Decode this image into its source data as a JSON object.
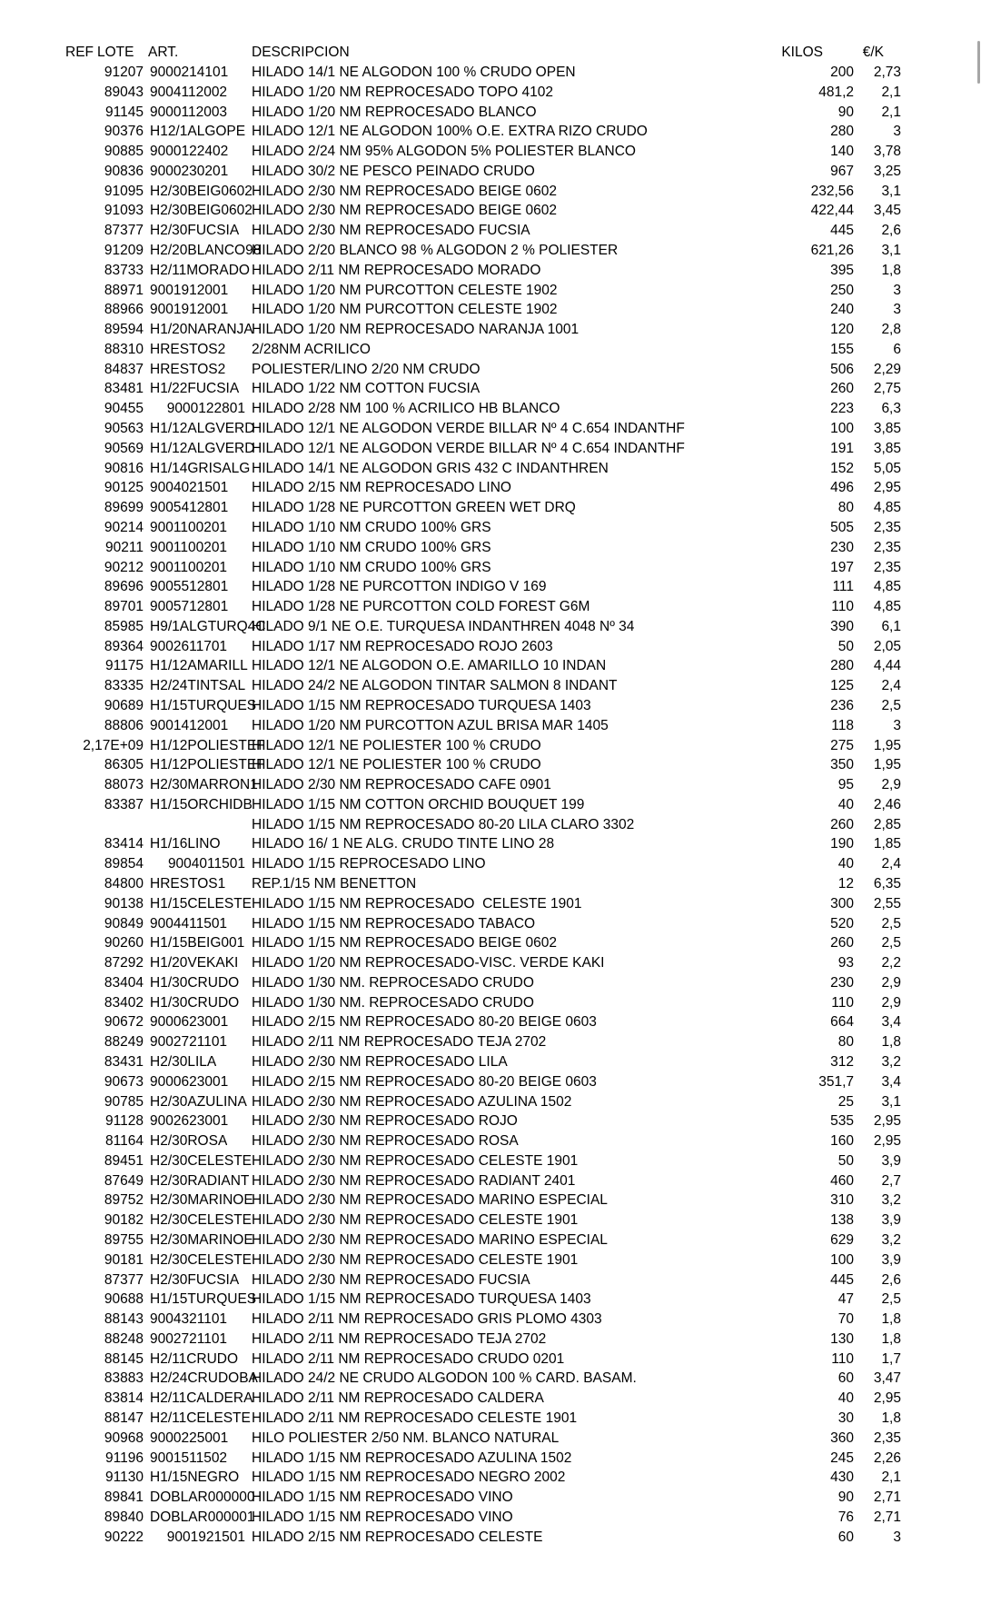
{
  "table": {
    "headers": {
      "ref": "REF",
      "lote": "LOTE",
      "art": "ART.",
      "descripcion": "DESCRIPCION",
      "kilos": "KILOS",
      "euro_per_k": "€/K"
    },
    "rows": [
      [
        "91207",
        "9000214101",
        "",
        "HILADO 14/1 NE ALGODON 100 % CRUDO OPEN",
        "200",
        "2,73"
      ],
      [
        "89043",
        "9004112002",
        "",
        "HILADO 1/20 NM REPROCESADO TOPO 4102",
        "481,2",
        "2,1"
      ],
      [
        "91145",
        "9000112003",
        "",
        "HILADO 1/20 NM REPROCESADO BLANCO",
        "90",
        "2,1"
      ],
      [
        "90376",
        "H12/1ALGOPE",
        "",
        "HILADO 12/1 NE ALGODON 100% O.E. EXTRA RIZO CRUDO",
        "280",
        "3"
      ],
      [
        "90885",
        "9000122402",
        "",
        "HILADO 2/24 NM 95% ALGODON 5% POLIESTER BLANCO",
        "140",
        "3,78"
      ],
      [
        "90836",
        "9000230201",
        "",
        "HILADO 30/2 NE PESCO PEINADO CRUDO",
        "967",
        "3,25"
      ],
      [
        "91095",
        "H2/30BEIG0602",
        "",
        "HILADO 2/30 NM REPROCESADO BEIGE 0602",
        "232,56",
        "3,1"
      ],
      [
        "91093",
        "H2/30BEIG0602",
        "",
        "HILADO 2/30 NM REPROCESADO BEIGE 0602",
        "422,44",
        "3,45"
      ],
      [
        "87377",
        "H2/30FUCSIA",
        "",
        "HILADO 2/30 NM REPROCESADO FUCSIA",
        "445",
        "2,6"
      ],
      [
        "91209",
        "H2/20BLANCO98",
        "",
        "HILADO 2/20 BLANCO 98 % ALGODON 2 % POLIESTER",
        "621,26",
        "3,1"
      ],
      [
        "83733",
        "H2/11MORADO",
        "",
        "HILADO 2/11 NM REPROCESADO MORADO",
        "395",
        "1,8"
      ],
      [
        "88971",
        "9001912001",
        "",
        "HILADO 1/20 NM PURCOTTON CELESTE 1902",
        "250",
        "3"
      ],
      [
        "88966",
        "9001912001",
        "",
        "HILADO 1/20 NM PURCOTTON CELESTE 1902",
        "240",
        "3"
      ],
      [
        "89594",
        "H1/20NARANJA",
        "",
        "HILADO 1/20 NM REPROCESADO NARANJA 1001",
        "120",
        "2,8"
      ],
      [
        "88310",
        "HRESTOS2",
        "",
        "2/28NM ACRILICO",
        "155",
        "6"
      ],
      [
        "84837",
        "HRESTOS2",
        "",
        "POLIESTER/LINO 2/20 NM CRUDO",
        "506",
        "2,29"
      ],
      [
        "83481",
        "H1/22FUCSIA",
        "",
        "HILADO 1/22 NM COTTON FUCSIA",
        "260",
        "2,75"
      ],
      [
        "90455",
        "",
        "9000122801",
        "HILADO 2/28 NM 100 % ACRILICO HB BLANCO",
        "223",
        "6,3"
      ],
      [
        "90563",
        "H1/12ALGVERD",
        "",
        "HILADO 12/1 NE ALGODON VERDE BILLAR Nº 4 C.654 INDANTHF",
        "100",
        "3,85"
      ],
      [
        "90569",
        "H1/12ALGVERD",
        "",
        "HILADO 12/1 NE ALGODON VERDE BILLAR Nº 4 C.654 INDANTHF",
        "191",
        "3,85"
      ],
      [
        "90816",
        "H1/14GRISALG",
        "",
        "HILADO 14/1 NE ALGODON GRIS 432 C INDANTHREN",
        "152",
        "5,05"
      ],
      [
        "90125",
        "9004021501",
        "",
        "HILADO 2/15 NM REPROCESADO LINO",
        "496",
        "2,95"
      ],
      [
        "89699",
        "9005412801",
        "",
        "HILADO 1/28 NE PURCOTTON GREEN WET DRQ",
        "80",
        "4,85"
      ],
      [
        "90214",
        "9001100201",
        "",
        "HILADO 1/10 NM CRUDO 100% GRS",
        "505",
        "2,35"
      ],
      [
        "90211",
        "9001100201",
        "",
        "HILADO 1/10 NM CRUDO 100% GRS",
        "230",
        "2,35"
      ],
      [
        "90212",
        "9001100201",
        "",
        "HILADO 1/10 NM CRUDO 100% GRS",
        "197",
        "2,35"
      ],
      [
        "89696",
        "9005512801",
        "",
        "HILADO 1/28 NE PURCOTTON INDIGO V 169",
        "111",
        "4,85"
      ],
      [
        "89701",
        "9005712801",
        "",
        "HILADO 1/28 NE PURCOTTON COLD FOREST G6M",
        "110",
        "4,85"
      ],
      [
        "85985",
        "H9/1ALGTURQ4C",
        "",
        "HILADO 9/1 NE O.E. TURQUESA INDANTHREN 4048 Nº 34",
        "390",
        "6,1"
      ],
      [
        "89364",
        "9002611701",
        "",
        "HILADO 1/17 NM REPROCESADO ROJO 2603",
        "50",
        "2,05"
      ],
      [
        "91175",
        "H1/12AMARILL",
        "",
        "HILADO 12/1 NE ALGODON O.E. AMARILLO 10 INDAN",
        "280",
        "4,44"
      ],
      [
        "83335",
        "H2/24TINTSAL",
        "",
        "HILADO 24/2 NE ALGODON TINTAR SALMON 8 INDANT",
        "125",
        "2,4"
      ],
      [
        "90689",
        "H1/15TURQUES",
        "",
        "HILADO 1/15 NM REPROCESADO TURQUESA 1403",
        "236",
        "2,5"
      ],
      [
        "88806",
        "9001412001",
        "",
        "HILADO 1/20 NM PURCOTTON AZUL BRISA MAR 1405",
        "118",
        "3"
      ],
      [
        "2,17E+09",
        "H1/12POLIESTEF",
        "",
        "HILADO 12/1 NE POLIESTER 100 % CRUDO",
        "275",
        "1,95"
      ],
      [
        "86305",
        "H1/12POLIESTEF",
        "",
        "HILADO 12/1 NE POLIESTER 100 % CRUDO",
        "350",
        "1,95"
      ],
      [
        "88073",
        "H2/30MARRON1",
        "",
        "HILADO 2/30 NM REPROCESADO CAFE 0901",
        "95",
        "2,9"
      ],
      [
        "83387",
        "H1/15ORCHIDB",
        "",
        "HILADO 1/15 NM COTTON ORCHID BOUQUET 199",
        "40",
        "2,46"
      ],
      [
        "",
        "",
        "",
        "HILADO 1/15 NM REPROCESADO 80-20 LILA CLARO 3302",
        "260",
        "2,85"
      ],
      [
        "83414",
        "H1/16LINO",
        "",
        "HILADO 16/ 1 NE ALG. CRUDO TINTE LINO 28",
        "190",
        "1,85"
      ],
      [
        "89854",
        "",
        "9004011501",
        "HILADO 1/15 REPROCESADO LINO",
        "40",
        "2,4"
      ],
      [
        "84800",
        "HRESTOS1",
        "",
        "REP.1/15 NM BENETTON",
        "12",
        "6,35"
      ],
      [
        "90138",
        "H1/15CELESTE",
        "",
        "HILADO 1/15 NM REPROCESADO  CELESTE 1901",
        "300",
        "2,55"
      ],
      [
        "90849",
        "9004411501",
        "",
        "HILADO 1/15 NM REPROCESADO TABACO",
        "520",
        "2,5"
      ],
      [
        "90260",
        "H1/15BEIG001",
        "",
        "HILADO 1/15 NM REPROCESADO BEIGE 0602",
        "260",
        "2,5"
      ],
      [
        "87292",
        "H1/20VEKAKI",
        "",
        "HILADO 1/20 NM REPROCESADO-VISC. VERDE KAKI",
        "93",
        "2,2"
      ],
      [
        "83404",
        "H1/30CRUDO",
        "",
        "HILADO 1/30 NM. REPROCESADO CRUDO",
        "230",
        "2,9"
      ],
      [
        "83402",
        "H1/30CRUDO",
        "",
        "HILADO 1/30 NM. REPROCESADO CRUDO",
        "110",
        "2,9"
      ],
      [
        "90672",
        "9000623001",
        "",
        "HILADO 2/15 NM REPROCESADO 80-20 BEIGE 0603",
        "664",
        "3,4"
      ],
      [
        "88249",
        "9002721101",
        "",
        "HILADO 2/11 NM REPROCESADO TEJA 2702",
        "80",
        "1,8"
      ],
      [
        "83431",
        "H2/30LILA",
        "",
        "HILADO 2/30 NM REPROCESADO LILA",
        "312",
        "3,2"
      ],
      [
        "90673",
        "9000623001",
        "",
        "HILADO 2/15 NM REPROCESADO 80-20 BEIGE 0603",
        "351,7",
        "3,4"
      ],
      [
        "90785",
        "H2/30AZULINA",
        "",
        "HILADO 2/30 NM REPROCESADO AZULINA 1502",
        "25",
        "3,1"
      ],
      [
        "91128",
        "9002623001",
        "",
        "HILADO 2/30 NM REPROCESADO ROJO",
        "535",
        "2,95"
      ],
      [
        "81164",
        "H2/30ROSA",
        "",
        "HILADO 2/30 NM REPROCESADO ROSA",
        "160",
        "2,95"
      ],
      [
        "89451",
        "H2/30CELESTE",
        "",
        "HILADO 2/30 NM REPROCESADO CELESTE 1901",
        "50",
        "3,9"
      ],
      [
        "87649",
        "H2/30RADIANT",
        "",
        "HILADO 2/30 NM REPROCESADO RADIANT 2401",
        "460",
        "2,7"
      ],
      [
        "89752",
        "H2/30MARINOE",
        "",
        "HILADO 2/30 NM REPROCESADO MARINO ESPECIAL",
        "310",
        "3,2"
      ],
      [
        "90182",
        "H2/30CELESTE",
        "",
        "HILADO 2/30 NM REPROCESADO CELESTE 1901",
        "138",
        "3,9"
      ],
      [
        "89755",
        "H2/30MARINOE",
        "",
        "HILADO 2/30 NM REPROCESADO MARINO ESPECIAL",
        "629",
        "3,2"
      ],
      [
        "90181",
        "H2/30CELESTE",
        "",
        "HILADO 2/30 NM REPROCESADO CELESTE 1901",
        "100",
        "3,9"
      ],
      [
        "87377",
        "H2/30FUCSIA",
        "",
        "HILADO 2/30 NM REPROCESADO FUCSIA",
        "445",
        "2,6"
      ],
      [
        "90688",
        "H1/15TURQUES",
        "",
        "HILADO 1/15 NM REPROCESADO TURQUESA 1403",
        "47",
        "2,5"
      ],
      [
        "88143",
        "9004321101",
        "",
        "HILADO 2/11 NM REPROCESADO GRIS PLOMO 4303",
        "70",
        "1,8"
      ],
      [
        "88248",
        "9002721101",
        "",
        "HILADO 2/11 NM REPROCESADO TEJA 2702",
        "130",
        "1,8"
      ],
      [
        "88145",
        "H2/11CRUDO",
        "",
        "HILADO 2/11 NM REPROCESADO CRUDO 0201",
        "110",
        "1,7"
      ],
      [
        "83883",
        "H2/24CRUDOBA",
        "",
        "HILADO 24/2 NE CRUDO ALGODON 100 % CARD. BASAM.",
        "60",
        "3,47"
      ],
      [
        "83814",
        "H2/11CALDERA",
        "",
        "HILADO 2/11 NM REPROCESADO CALDERA",
        "40",
        "2,95"
      ],
      [
        "88147",
        "H2/11CELESTE",
        "",
        "HILADO 2/11 NM REPROCESADO CELESTE 1901",
        "30",
        "1,8"
      ],
      [
        "90968",
        "9000225001",
        "",
        "HILO POLIESTER 2/50 NM. BLANCO NATURAL",
        "360",
        "2,35"
      ],
      [
        "91196",
        "9001511502",
        "",
        "HILADO 1/15 NM REPROCESADO AZULINA 1502",
        "245",
        "2,26"
      ],
      [
        "91130",
        "H1/15NEGRO",
        "",
        "HILADO 1/15 NM REPROCESADO NEGRO 2002",
        "430",
        "2,1"
      ],
      [
        "89841",
        "DOBLAR000000",
        "",
        "HILADO 1/15 NM REPROCESADO VINO",
        "90",
        "2,71"
      ],
      [
        "89840",
        "DOBLAR000001",
        "",
        "HILADO 1/15 NM REPROCESADO VINO",
        "76",
        "2,71"
      ],
      [
        "90222",
        "",
        "9001921501",
        "HILADO 2/15 NM REPROCESADO CELESTE",
        "60",
        "3"
      ]
    ]
  },
  "colors": {
    "text": "#000000",
    "background": "#ffffff",
    "scrollbar_fragment": "#a6a6a6"
  }
}
